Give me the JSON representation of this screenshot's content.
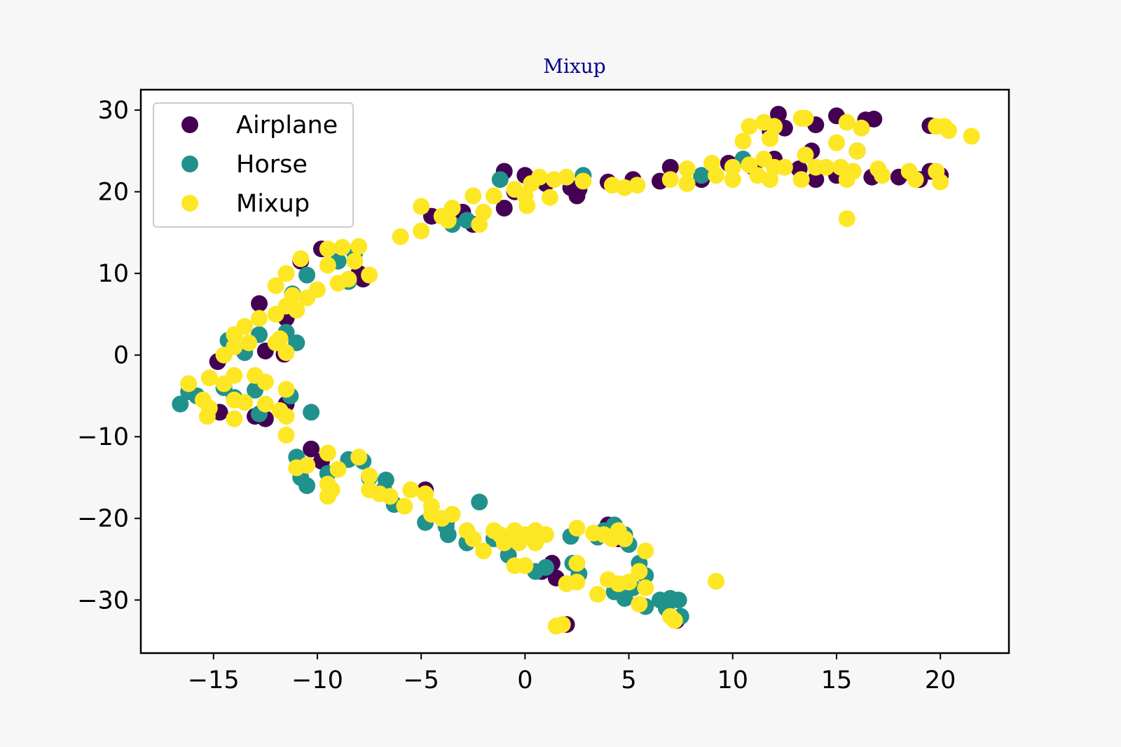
{
  "chart_data": {
    "type": "scatter",
    "title": "Mixup",
    "xlabel": "",
    "ylabel": "",
    "xlim": [
      -18.5,
      23.3
    ],
    "ylim": [
      -36.5,
      32.5
    ],
    "xticks": [
      -15,
      -10,
      -5,
      0,
      5,
      10,
      15,
      20
    ],
    "yticks": [
      -30,
      -20,
      -10,
      0,
      10,
      20,
      30
    ],
    "xtick_labels": [
      "−15",
      "−10",
      "−5",
      "0",
      "5",
      "10",
      "15",
      "20"
    ],
    "ytick_labels": [
      "−30",
      "−20",
      "−10",
      "0",
      "10",
      "20",
      "30"
    ],
    "grid": false,
    "legend_position": "top-left",
    "series": [
      {
        "name": "Airplane",
        "color": "#440154",
        "points": [
          [
            12.2,
            29.5
          ],
          [
            15.0,
            29.3
          ],
          [
            16.4,
            28.8
          ],
          [
            16.8,
            28.9
          ],
          [
            12.5,
            27.8
          ],
          [
            14.0,
            28.2
          ],
          [
            11.8,
            27.5
          ],
          [
            19.5,
            28.1
          ],
          [
            12.0,
            24.0
          ],
          [
            13.8,
            25.0
          ],
          [
            16.0,
            25.0
          ],
          [
            13.2,
            22.8
          ],
          [
            14.0,
            21.5
          ],
          [
            15.0,
            22.0
          ],
          [
            16.7,
            21.8
          ],
          [
            17.0,
            22.5
          ],
          [
            18.0,
            21.8
          ],
          [
            19.0,
            21.5
          ],
          [
            19.5,
            22.5
          ],
          [
            20.0,
            22.0
          ],
          [
            7.0,
            23.0
          ],
          [
            8.5,
            21.5
          ],
          [
            9.8,
            23.5
          ],
          [
            11.0,
            23.0
          ],
          [
            4.0,
            21.2
          ],
          [
            5.2,
            21.5
          ],
          [
            6.5,
            21.3
          ],
          [
            -1.0,
            22.5
          ],
          [
            0.0,
            22.0
          ],
          [
            1.0,
            21.0
          ],
          [
            2.2,
            20.5
          ],
          [
            2.5,
            19.5
          ],
          [
            2.6,
            20.3
          ],
          [
            -4.5,
            17.0
          ],
          [
            -3.0,
            17.5
          ],
          [
            -2.5,
            16.0
          ],
          [
            -1.0,
            18.0
          ],
          [
            -0.5,
            20.0
          ],
          [
            -10.8,
            11.5
          ],
          [
            -9.8,
            13.0
          ],
          [
            -8.0,
            10.0
          ],
          [
            -7.8,
            9.3
          ],
          [
            -12.8,
            6.3
          ],
          [
            -11.5,
            4.5
          ],
          [
            -14.8,
            -0.8
          ],
          [
            -12.5,
            0.5
          ],
          [
            -11.6,
            0.1
          ],
          [
            -14.7,
            -7.0
          ],
          [
            -13.0,
            -7.5
          ],
          [
            -12.5,
            -7.8
          ],
          [
            -11.5,
            -6.0
          ],
          [
            -10.3,
            -11.5
          ],
          [
            -9.8,
            -13.0
          ],
          [
            -4.8,
            -16.5
          ],
          [
            -3.8,
            -20.5
          ],
          [
            1.3,
            -25.5
          ],
          [
            1.5,
            -27.3
          ],
          [
            0.8,
            -26.5
          ],
          [
            4.0,
            -20.8
          ],
          [
            4.5,
            -22.5
          ],
          [
            7.3,
            -32.5
          ],
          [
            2.0,
            -33.0
          ]
        ]
      },
      {
        "name": "Horse",
        "color": "#21918c",
        "points": [
          [
            10.5,
            24.0
          ],
          [
            8.5,
            22.0
          ],
          [
            2.8,
            22.0
          ],
          [
            -1.2,
            21.5
          ],
          [
            -3.5,
            16.0
          ],
          [
            -2.8,
            16.5
          ],
          [
            -10.5,
            9.8
          ],
          [
            -11.2,
            7.5
          ],
          [
            -9.0,
            11.5
          ],
          [
            -8.2,
            12.5
          ],
          [
            -8.5,
            9.0
          ],
          [
            -14.3,
            1.8
          ],
          [
            -12.8,
            2.5
          ],
          [
            -11.5,
            2.8
          ],
          [
            -11.0,
            1.5
          ],
          [
            -13.5,
            0.3
          ],
          [
            -16.2,
            -4.5
          ],
          [
            -16.6,
            -6.0
          ],
          [
            -15.8,
            -5.0
          ],
          [
            -14.5,
            -4.0
          ],
          [
            -14.0,
            -5.2
          ],
          [
            -13.0,
            -4.3
          ],
          [
            -12.8,
            -7.2
          ],
          [
            -11.3,
            -5.0
          ],
          [
            -10.3,
            -7.0
          ],
          [
            -11.0,
            -12.5
          ],
          [
            -10.8,
            -15.0
          ],
          [
            -10.5,
            -16.0
          ],
          [
            -9.5,
            -14.5
          ],
          [
            -8.5,
            -12.8
          ],
          [
            -7.8,
            -13.0
          ],
          [
            -7.5,
            -15.0
          ],
          [
            -6.7,
            -15.3
          ],
          [
            -6.8,
            -16.5
          ],
          [
            -6.3,
            -18.3
          ],
          [
            -4.8,
            -20.5
          ],
          [
            -3.8,
            -21.0
          ],
          [
            -3.7,
            -22.0
          ],
          [
            -2.8,
            -23.0
          ],
          [
            -2.2,
            -18.0
          ],
          [
            -1.5,
            -22.5
          ],
          [
            -1.0,
            -23.0
          ],
          [
            -0.8,
            -24.5
          ],
          [
            0.5,
            -26.5
          ],
          [
            1.0,
            -26.0
          ],
          [
            2.2,
            -22.2
          ],
          [
            2.3,
            -25.5
          ],
          [
            2.6,
            -26.8
          ],
          [
            3.5,
            -22.3
          ],
          [
            3.8,
            -21.5
          ],
          [
            4.3,
            -20.8
          ],
          [
            4.8,
            -22.0
          ],
          [
            5.0,
            -23.2
          ],
          [
            5.5,
            -25.5
          ],
          [
            5.8,
            -27.0
          ],
          [
            4.3,
            -29.0
          ],
          [
            4.8,
            -29.8
          ],
          [
            5.2,
            -28.5
          ],
          [
            5.8,
            -30.8
          ],
          [
            6.5,
            -30.0
          ],
          [
            6.8,
            -31.0
          ],
          [
            7.0,
            -29.8
          ],
          [
            7.4,
            -30.0
          ],
          [
            7.5,
            -32.0
          ]
        ]
      },
      {
        "name": "Mixup",
        "color": "#fde725",
        "points": [
          [
            13.3,
            29.0
          ],
          [
            13.5,
            29.0
          ],
          [
            15.5,
            28.5
          ],
          [
            16.2,
            27.8
          ],
          [
            10.8,
            28.0
          ],
          [
            11.5,
            28.5
          ],
          [
            12.0,
            28.0
          ],
          [
            19.8,
            28.0
          ],
          [
            20.2,
            28.0
          ],
          [
            20.4,
            27.5
          ],
          [
            21.5,
            26.8
          ],
          [
            10.5,
            26.2
          ],
          [
            11.8,
            26.5
          ],
          [
            15.0,
            26.0
          ],
          [
            13.5,
            24.5
          ],
          [
            16.0,
            25.0
          ],
          [
            11.5,
            24.0
          ],
          [
            15.5,
            16.7
          ],
          [
            9.0,
            23.5
          ],
          [
            10.0,
            23.0
          ],
          [
            10.8,
            23.3
          ],
          [
            12.0,
            23.0
          ],
          [
            12.5,
            23.0
          ],
          [
            14.0,
            23.0
          ],
          [
            14.5,
            23.0
          ],
          [
            15.2,
            23.0
          ],
          [
            15.8,
            22.5
          ],
          [
            17.0,
            22.8
          ],
          [
            18.5,
            22.5
          ],
          [
            19.8,
            22.5
          ],
          [
            7.8,
            22.8
          ],
          [
            9.2,
            22.0
          ],
          [
            10.0,
            21.5
          ],
          [
            11.2,
            22.0
          ],
          [
            11.8,
            21.5
          ],
          [
            13.3,
            21.5
          ],
          [
            15.5,
            21.5
          ],
          [
            17.2,
            22.0
          ],
          [
            18.8,
            21.5
          ],
          [
            20.0,
            21.2
          ],
          [
            4.2,
            20.8
          ],
          [
            4.8,
            20.5
          ],
          [
            5.4,
            20.8
          ],
          [
            7.0,
            21.5
          ],
          [
            7.8,
            21.0
          ],
          [
            1.4,
            21.5
          ],
          [
            2.0,
            21.8
          ],
          [
            2.8,
            21.3
          ],
          [
            1.2,
            19.3
          ],
          [
            0.3,
            21.0
          ],
          [
            0.7,
            21.8
          ],
          [
            0.0,
            19.5
          ],
          [
            -0.5,
            20.3
          ],
          [
            0.1,
            18.3
          ],
          [
            -5.0,
            18.2
          ],
          [
            -4.0,
            17.0
          ],
          [
            -3.5,
            18.0
          ],
          [
            -2.5,
            19.5
          ],
          [
            -2.0,
            17.5
          ],
          [
            -1.5,
            19.5
          ],
          [
            -2.2,
            16.0
          ],
          [
            -3.7,
            16.5
          ],
          [
            -5.0,
            15.2
          ],
          [
            -6.0,
            14.5
          ],
          [
            -9.5,
            13.0
          ],
          [
            -8.8,
            13.2
          ],
          [
            -8.0,
            13.3
          ],
          [
            -10.8,
            11.8
          ],
          [
            -9.5,
            11.0
          ],
          [
            -8.2,
            11.5
          ],
          [
            -7.5,
            9.8
          ],
          [
            -8.5,
            9.3
          ],
          [
            -9.0,
            8.8
          ],
          [
            -10.0,
            8.0
          ],
          [
            -11.5,
            10.0
          ],
          [
            -12.0,
            8.5
          ],
          [
            -11.2,
            7.3
          ],
          [
            -10.5,
            7.0
          ],
          [
            -11.5,
            6.0
          ],
          [
            -11.0,
            5.5
          ],
          [
            -12.0,
            5.0
          ],
          [
            -12.8,
            4.5
          ],
          [
            -13.5,
            3.5
          ],
          [
            -14.0,
            2.5
          ],
          [
            -13.3,
            1.5
          ],
          [
            -14.0,
            1.0
          ],
          [
            -12.0,
            1.5
          ],
          [
            -11.8,
            2.0
          ],
          [
            -11.5,
            0.3
          ],
          [
            -14.5,
            0.0
          ],
          [
            -16.2,
            -3.5
          ],
          [
            -15.2,
            -2.8
          ],
          [
            -14.5,
            -3.5
          ],
          [
            -14.0,
            -2.5
          ],
          [
            -13.0,
            -2.5
          ],
          [
            -12.5,
            -3.3
          ],
          [
            -11.5,
            -4.2
          ],
          [
            -15.5,
            -5.5
          ],
          [
            -15.2,
            -6.5
          ],
          [
            -14.0,
            -5.5
          ],
          [
            -13.5,
            -5.8
          ],
          [
            -12.5,
            -6.0
          ],
          [
            -11.8,
            -6.8
          ],
          [
            -11.5,
            -7.5
          ],
          [
            -15.3,
            -7.5
          ],
          [
            -14.0,
            -7.8
          ],
          [
            -11.5,
            -9.8
          ],
          [
            -11.0,
            -13.8
          ],
          [
            -10.5,
            -13.5
          ],
          [
            -9.5,
            -12.0
          ],
          [
            -9.0,
            -14.0
          ],
          [
            -9.5,
            -15.8
          ],
          [
            -9.3,
            -16.5
          ],
          [
            -9.5,
            -17.3
          ],
          [
            -8.0,
            -12.5
          ],
          [
            -7.5,
            -14.8
          ],
          [
            -7.5,
            -16.5
          ],
          [
            -7.0,
            -17.0
          ],
          [
            -6.5,
            -17.3
          ],
          [
            -5.8,
            -18.5
          ],
          [
            -5.5,
            -16.5
          ],
          [
            -4.8,
            -17.0
          ],
          [
            -4.5,
            -19.5
          ],
          [
            -4.5,
            -18.5
          ],
          [
            -4.0,
            -20.0
          ],
          [
            -3.5,
            -19.5
          ],
          [
            -2.8,
            -21.5
          ],
          [
            -2.5,
            -22.5
          ],
          [
            -2.0,
            -24.0
          ],
          [
            -1.5,
            -21.5
          ],
          [
            -1.2,
            -22.0
          ],
          [
            -1.0,
            -23.0
          ],
          [
            -0.5,
            -21.5
          ],
          [
            -0.3,
            -23.0
          ],
          [
            0.0,
            -22.0
          ],
          [
            0.5,
            -21.5
          ],
          [
            0.5,
            -23.0
          ],
          [
            0.0,
            -25.8
          ],
          [
            -0.5,
            -25.8
          ],
          [
            1.0,
            -22.0
          ],
          [
            2.5,
            -21.2
          ],
          [
            3.3,
            -21.8
          ],
          [
            3.8,
            -22.0
          ],
          [
            4.2,
            -22.5
          ],
          [
            4.5,
            -21.5
          ],
          [
            4.8,
            -22.5
          ],
          [
            5.8,
            -24.0
          ],
          [
            2.5,
            -25.5
          ],
          [
            2.5,
            -27.8
          ],
          [
            2.0,
            -28.0
          ],
          [
            3.5,
            -29.3
          ],
          [
            4.0,
            -27.5
          ],
          [
            4.5,
            -28.0
          ],
          [
            5.0,
            -27.8
          ],
          [
            5.5,
            -26.5
          ],
          [
            5.8,
            -28.5
          ],
          [
            5.5,
            -30.5
          ],
          [
            7.0,
            -32.0
          ],
          [
            7.2,
            -32.5
          ],
          [
            9.2,
            -27.7
          ],
          [
            1.5,
            -33.2
          ],
          [
            1.8,
            -33.0
          ]
        ]
      }
    ]
  }
}
